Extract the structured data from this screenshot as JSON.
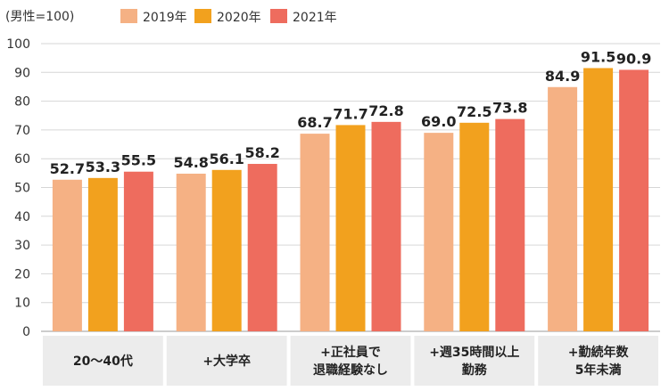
{
  "chart_data": {
    "type": "bar",
    "note": "(男性=100)",
    "categories": [
      [
        "20〜40代"
      ],
      [
        "+大学卒"
      ],
      [
        "+正社員で",
        "退職経験なし"
      ],
      [
        "+週35時間以上",
        "勤務"
      ],
      [
        "+勤続年数",
        "5年未満"
      ]
    ],
    "series": [
      {
        "name": "2019年",
        "color": "#F5B184",
        "values": [
          52.7,
          54.8,
          68.7,
          69.0,
          84.9
        ],
        "labels": [
          "52.7",
          "54.8",
          "68.7",
          "69.0",
          "84.9"
        ]
      },
      {
        "name": "2020年",
        "color": "#F2A11E",
        "values": [
          53.3,
          56.1,
          71.7,
          72.5,
          91.5
        ],
        "labels": [
          "53.3",
          "56.1",
          "71.7",
          "72.5",
          "91.5"
        ]
      },
      {
        "name": "2021年",
        "color": "#EE6C5E",
        "values": [
          55.5,
          58.2,
          72.8,
          73.8,
          90.9
        ],
        "labels": [
          "55.5",
          "58.2",
          "72.8",
          "73.8",
          "90.9"
        ]
      }
    ],
    "ylim": [
      0,
      100
    ],
    "yticks": [
      0,
      10,
      20,
      30,
      40,
      50,
      60,
      70,
      80,
      90,
      100
    ],
    "grid": true,
    "legend": "top"
  }
}
